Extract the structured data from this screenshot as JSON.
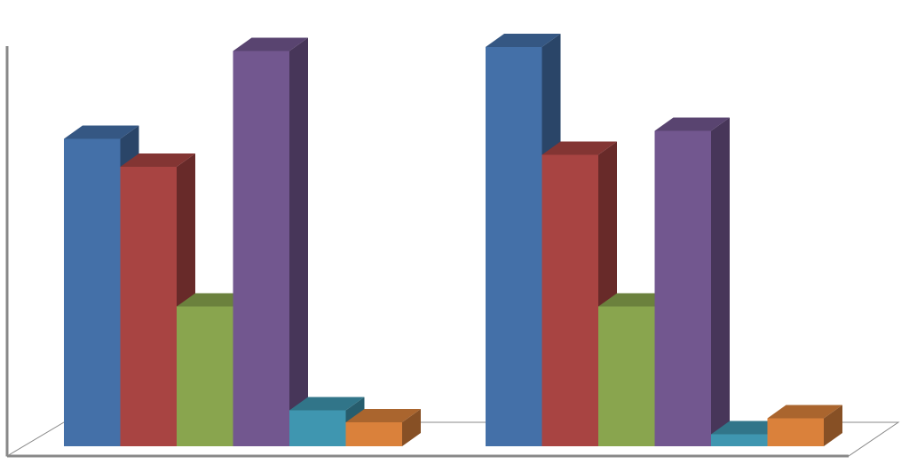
{
  "chart_data": {
    "type": "bar",
    "style": "3d-clustered-column",
    "title": "",
    "xlabel": "",
    "ylabel": "",
    "categories": [
      "",
      ""
    ],
    "series": [
      {
        "color": "#4470A8",
        "values": [
          77,
          100
        ]
      },
      {
        "color": "#A84442",
        "values": [
          70,
          73
        ]
      },
      {
        "color": "#89A54E",
        "values": [
          35,
          35
        ]
      },
      {
        "color": "#72578F",
        "values": [
          99,
          79
        ]
      },
      {
        "color": "#3F96B0",
        "values": [
          9,
          3
        ]
      },
      {
        "color": "#DA813B",
        "values": [
          6,
          7
        ]
      }
    ],
    "ylim": [
      0,
      100
    ],
    "grid": false,
    "legend": "none",
    "tick_labels": false,
    "axis_color": "#888888"
  }
}
